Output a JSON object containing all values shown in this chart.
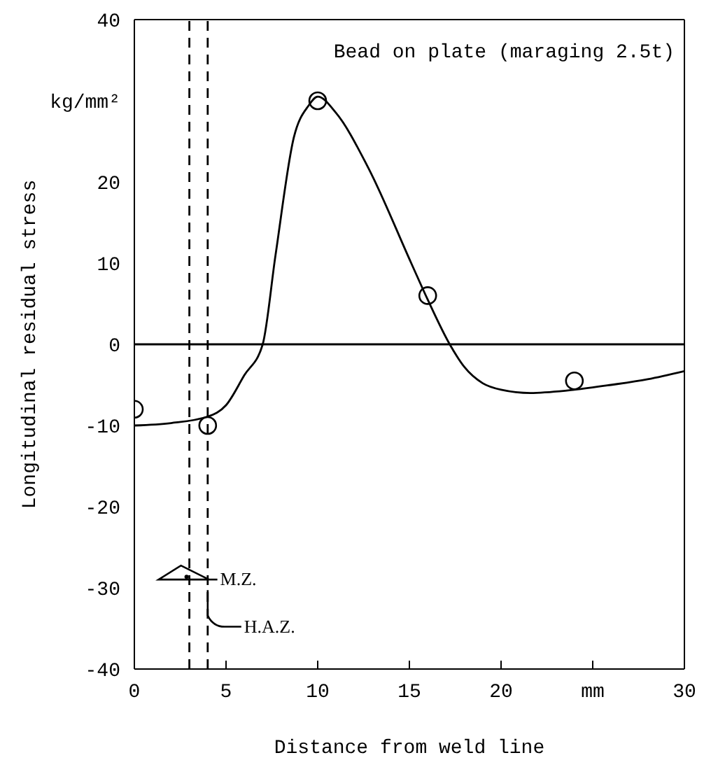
{
  "chart_data": {
    "type": "scatter",
    "title": "Bead on plate (maraging 2.5t)",
    "xlabel": "Distance from weld line",
    "ylabel": "Longitudinal residual stress",
    "xlim": [
      0,
      30
    ],
    "xticks": [
      0,
      5,
      10,
      15,
      20,
      {
        "value": 25,
        "label": "mm"
      },
      30
    ],
    "ylim": [
      -40,
      40
    ],
    "yticks": [
      -40,
      -30,
      -20,
      -10,
      0,
      10,
      20,
      {
        "value": 30,
        "label": "kg/mm²"
      },
      40
    ],
    "series": [
      {
        "color": "#000000",
        "marker": "circle",
        "x": [
          0,
          4,
          10,
          16,
          24
        ],
        "values": [
          -8,
          -10,
          30,
          6,
          -4.5
        ]
      },
      {
        "type": "line",
        "color": "#000000",
        "marker": "none",
        "line_style": "solid",
        "x": [
          0,
          2,
          4,
          5,
          6,
          7,
          7.7,
          8.7,
          9.5,
          10,
          11,
          12.7,
          15.1,
          16,
          17.2,
          18,
          19,
          20,
          21.6,
          24,
          26,
          28,
          30
        ],
        "values": [
          -10,
          -9.7,
          -8.9,
          -7.5,
          -3.8,
          0,
          11,
          25.5,
          29.4,
          30.5,
          28.5,
          22,
          10,
          5.5,
          0,
          -2.8,
          -4.8,
          -5.6,
          -6,
          -5.6,
          -5,
          -4.3,
          -3.3
        ]
      }
    ],
    "ref_lines": [
      {
        "axis": "y",
        "value": 0,
        "line_style": "solid",
        "color": "#000000"
      },
      {
        "axis": "x",
        "value": 3,
        "label": "M.Z.",
        "line_style": "dashed",
        "color": "#000000"
      },
      {
        "axis": "x",
        "value": 4,
        "label": "H.A.Z.",
        "line_style": "dashed",
        "color": "#000000"
      }
    ]
  }
}
